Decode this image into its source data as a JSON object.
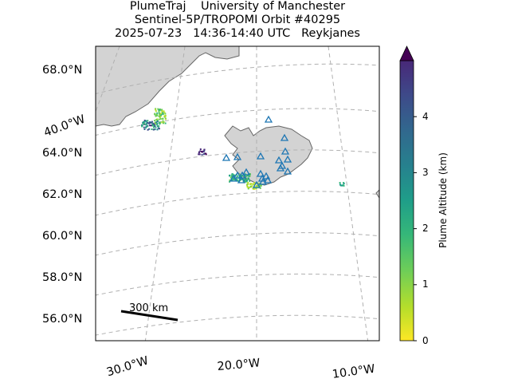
{
  "title": {
    "line1": "PlumeTraj    University of Manchester",
    "line2": "Sentinel-5P/TROPOMI Orbit #40295",
    "line3": "2025-07-23   14:36-14:40 UTC   Reykjanes"
  },
  "map": {
    "projection": "conic",
    "lat_labels": [
      "68.0°N",
      "64.0°N",
      "62.0°N",
      "60.0°N",
      "58.0°N",
      "56.0°N"
    ],
    "lon_labels_left": [
      "40.0°W"
    ],
    "lon_labels_bottom": [
      "30.0°W",
      "20.0°W",
      "10.0°W"
    ],
    "land_color": "#d3d3d3",
    "coast_color": "#666666",
    "grid_color": "#b0b0b0",
    "marker_color": "#1f77b4",
    "marker_symbol": "triangle-open",
    "scale_bar_label": "300 km",
    "volcano_count": 22
  },
  "colorbar": {
    "label": "Plume Altitude (km)",
    "ticks": [
      "0",
      "1",
      "2",
      "3",
      "4"
    ],
    "range": [
      0,
      5
    ],
    "extend": "max",
    "colormap": "viridis_r"
  }
}
